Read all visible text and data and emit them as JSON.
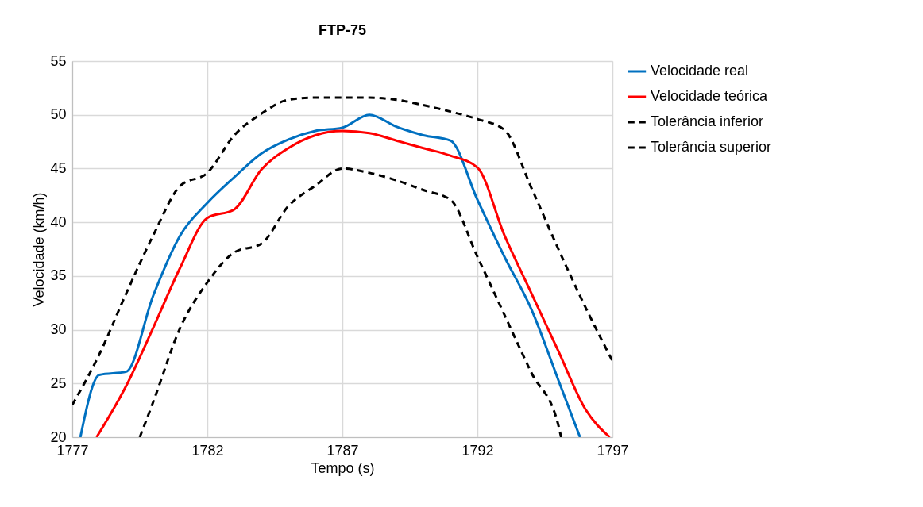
{
  "chart_data": {
    "type": "line",
    "title": "FTP-75",
    "xlabel": "Tempo (s)",
    "ylabel": "Velocidade (km/h)",
    "xlim": [
      1777,
      1797
    ],
    "xticks": [
      1777,
      1782,
      1787,
      1792,
      1797
    ],
    "ylim": [
      20,
      55
    ],
    "yticks": [
      20,
      25,
      30,
      35,
      40,
      45,
      50,
      55
    ],
    "grid": true,
    "legend": "right",
    "series": [
      {
        "name": "Velocidade real",
        "color": "#0070c0",
        "line_style": "solid",
        "x": [
          1777.3,
          1778,
          1779,
          1780,
          1781,
          1782,
          1783,
          1784,
          1785,
          1786,
          1787,
          1788,
          1789,
          1790,
          1791,
          1792,
          1793,
          1794,
          1795,
          1795.8
        ],
        "values": [
          20,
          25.8,
          26.1,
          33.2,
          38.8,
          41.8,
          44.2,
          46.4,
          47.7,
          48.5,
          48.8,
          50.0,
          48.9,
          48.1,
          47.6,
          42.1,
          36.8,
          31.9,
          25.3,
          20
        ]
      },
      {
        "name": "Velocidade teórica",
        "color": "#ff0000",
        "line_style": "solid",
        "x": [
          1777.9,
          1779,
          1780,
          1781,
          1782,
          1783,
          1784,
          1785,
          1786,
          1787,
          1788,
          1789,
          1790,
          1791,
          1792,
          1793,
          1794,
          1795,
          1796,
          1796.9
        ],
        "values": [
          20,
          24.8,
          30.2,
          35.8,
          40.4,
          41.2,
          44.9,
          46.9,
          48.1,
          48.5,
          48.3,
          47.6,
          46.9,
          46.2,
          45.1,
          38.8,
          33.4,
          28.0,
          22.6,
          20
        ]
      },
      {
        "name": "Tolerância inferior",
        "color": "#000000",
        "line_style": "dashed",
        "x": [
          1779.5,
          1780,
          1781,
          1782,
          1783,
          1784,
          1785,
          1786,
          1787,
          1788,
          1789,
          1790,
          1791,
          1792,
          1793,
          1794,
          1795,
          1795.1
        ],
        "values": [
          20,
          23.3,
          30.2,
          34.4,
          37.2,
          38.0,
          41.5,
          43.4,
          45.0,
          44.6,
          43.9,
          43.0,
          42.1,
          36.8,
          31.4,
          26.0,
          21.1,
          20
        ]
      },
      {
        "name": "Tolerância superior",
        "color": "#000000",
        "line_style": "dashed",
        "x": [
          1777,
          1778,
          1779,
          1780,
          1781,
          1782,
          1783,
          1784,
          1785,
          1786,
          1787,
          1788,
          1789,
          1790,
          1791,
          1792,
          1793,
          1794,
          1795,
          1796,
          1797
        ],
        "values": [
          23,
          27.7,
          33.4,
          38.8,
          43.4,
          44.6,
          48.1,
          50.1,
          51.4,
          51.6,
          51.6,
          51.6,
          51.4,
          50.9,
          50.3,
          49.6,
          48.6,
          43.2,
          37.5,
          32.1,
          27.1
        ]
      }
    ]
  }
}
